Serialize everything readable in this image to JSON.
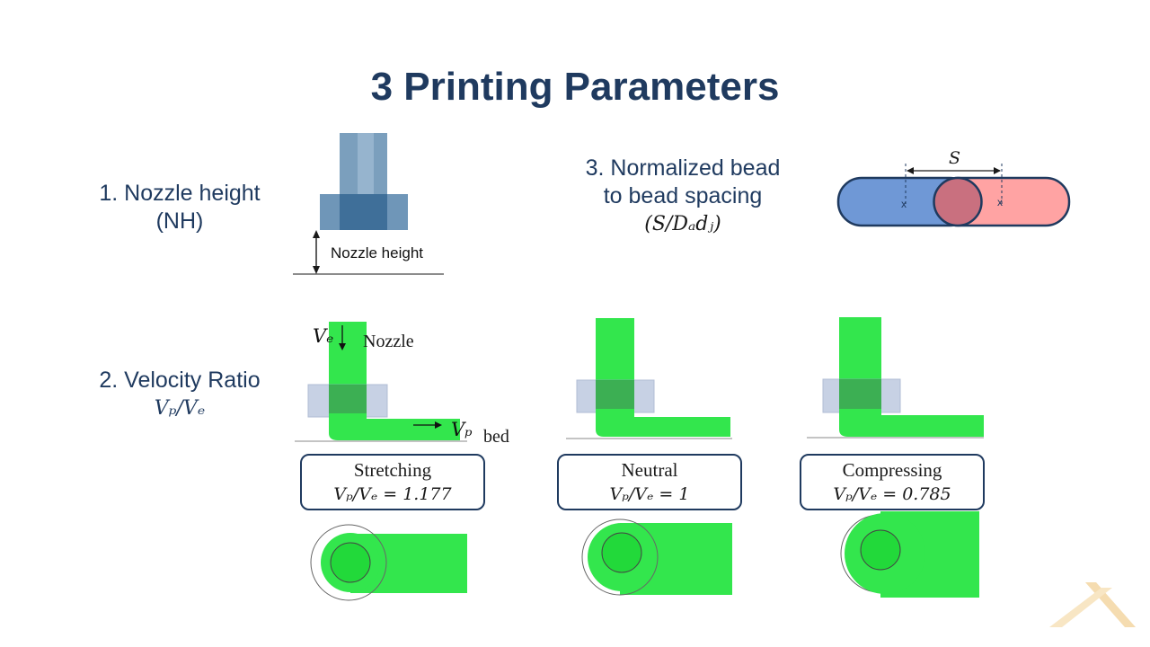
{
  "slide": {
    "title": "3 Printing Parameters"
  },
  "param1": {
    "title_line1": "1. Nozzle height",
    "title_line2": "(NH)",
    "diagram_label": "Nozzle  height"
  },
  "param2": {
    "title_line1": "2. Velocity Ratio",
    "formula": "Vₚ/Vₑ",
    "labels": {
      "ve": "Vₑ",
      "nozzle": "Nozzle",
      "vp": "Vₚ",
      "bed": "bed"
    },
    "cases": [
      {
        "name": "Stretching",
        "formula": "Vₚ/Vₑ = 1.177"
      },
      {
        "name": "Neutral",
        "formula": "Vₚ/Vₑ = 1"
      },
      {
        "name": "Compressing",
        "formula": "Vₚ/Vₑ = 0.785"
      }
    ]
  },
  "param3": {
    "title_line1": "3. Normalized bead",
    "title_line2": "to bead spacing",
    "formula": "(S/Dₐdⱼ)",
    "diagram": {
      "spacing_label": "S",
      "center_mark_left": "x",
      "center_mark_right": "x"
    }
  },
  "colors": {
    "title": "#1f3a5f",
    "bead_green": "#33e64d",
    "bead_blue": "#6f98d6",
    "bead_red": "#ffa3a3",
    "nozzle_blue": "#4f81a8"
  }
}
